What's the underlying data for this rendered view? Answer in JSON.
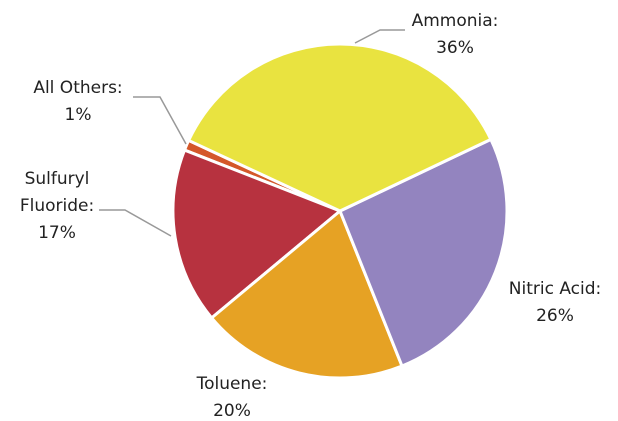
{
  "chart_data": {
    "type": "pie",
    "categories": [
      "Ammonia:",
      "Nitric Acid:",
      "Toluene:",
      "Sulfuryl Fluoride:",
      "All Others:"
    ],
    "values": [
      36,
      26,
      20,
      17,
      1
    ],
    "value_labels": [
      "36%",
      "26%",
      "20%",
      "17%",
      "1%"
    ],
    "colors": [
      "#e9e340",
      "#9384bf",
      "#e6a224",
      "#b7323f",
      "#d4582a"
    ]
  }
}
